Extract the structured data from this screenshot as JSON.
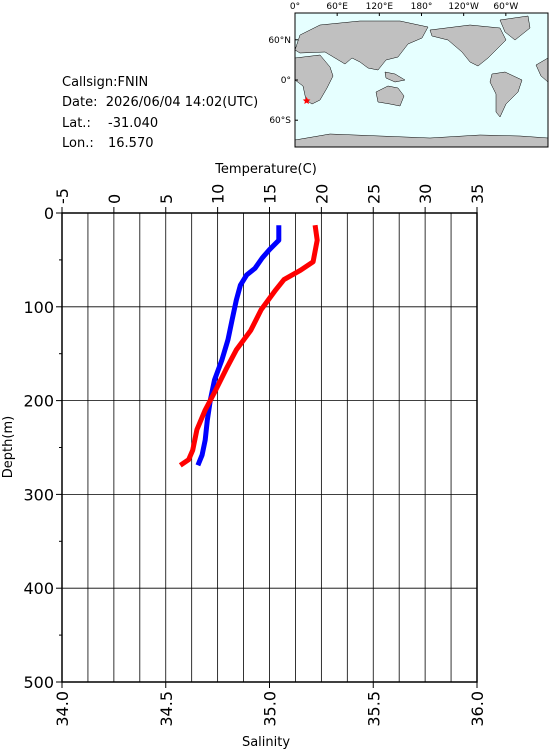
{
  "info": {
    "callsign": "Callsign:FNIN",
    "date": "Date:  2026/06/04 14:02(UTC)",
    "lat_label": "Lat.:",
    "lat": {
      "value": -31.04,
      "label": "-31.040"
    },
    "lon_label": "Lon.:",
    "lon": {
      "value": 16.57,
      "label": "16.570"
    }
  },
  "map": {
    "lonlim": [
      0,
      360
    ],
    "latlim": [
      -100,
      100
    ],
    "marker_color": "#ff0000",
    "lon_ticks": [
      {
        "value": 0,
        "label": "0°"
      },
      {
        "value": 60,
        "label": "60°E"
      },
      {
        "value": 120,
        "label": "120°E"
      },
      {
        "value": 180,
        "label": "180°"
      },
      {
        "value": 240,
        "label": "120°W"
      },
      {
        "value": 300,
        "label": "60°W"
      }
    ],
    "lat_ticks": [
      {
        "value": 60,
        "label": "60°N"
      },
      {
        "value": 0,
        "label": "0°"
      },
      {
        "value": -60,
        "label": "60°S"
      }
    ]
  },
  "chart_data": {
    "type": "line",
    "top_axis_label": "Temperature(C)",
    "bottom_axis_label": "Salinity",
    "ylabel": "Depth(m)",
    "tlim": [
      -5,
      35
    ],
    "tticks": [
      -5,
      0,
      5,
      10,
      15,
      20,
      25,
      30,
      35
    ],
    "tgrid": [
      -2.5,
      0,
      2.5,
      5,
      7.5,
      10,
      12.5,
      15,
      17.5,
      20,
      22.5,
      25,
      27.5,
      30,
      32.5
    ],
    "slim": [
      34,
      36
    ],
    "sticks": [
      {
        "value": 34,
        "label": "34.0"
      },
      {
        "value": 34.5,
        "label": "34.5"
      },
      {
        "value": 35,
        "label": "35.0"
      },
      {
        "value": 35.5,
        "label": "35.5"
      },
      {
        "value": 36,
        "label": "36.0"
      }
    ],
    "ylim": [
      0,
      500
    ],
    "yticks": [
      0,
      100,
      200,
      300,
      400,
      500
    ],
    "yminor": [
      50,
      150,
      250,
      350,
      450
    ],
    "grid": true,
    "series": [
      {
        "axis": "top",
        "color": "#0000ff",
        "depth": [
          13,
          29,
          39,
          48,
          59,
          66,
          77,
          93,
          114,
          135,
          157,
          178,
          199,
          221,
          242,
          258,
          269
        ],
        "values": [
          15.9,
          15.9,
          15.0,
          14.3,
          13.6,
          12.8,
          12.2,
          11.8,
          11.4,
          11.0,
          10.4,
          9.7,
          9.3,
          9.0,
          8.8,
          8.5,
          8.1
        ]
      },
      {
        "axis": "bottom",
        "color": "#ff0000",
        "depth": [
          13,
          29,
          52,
          61,
          71,
          82,
          103,
          125,
          146,
          167,
          189,
          210,
          231,
          253,
          263,
          269
        ],
        "values": [
          35.22,
          35.23,
          35.21,
          35.15,
          35.07,
          35.03,
          34.96,
          34.91,
          34.84,
          34.79,
          34.74,
          34.69,
          34.65,
          34.63,
          34.61,
          34.57
        ]
      }
    ]
  }
}
